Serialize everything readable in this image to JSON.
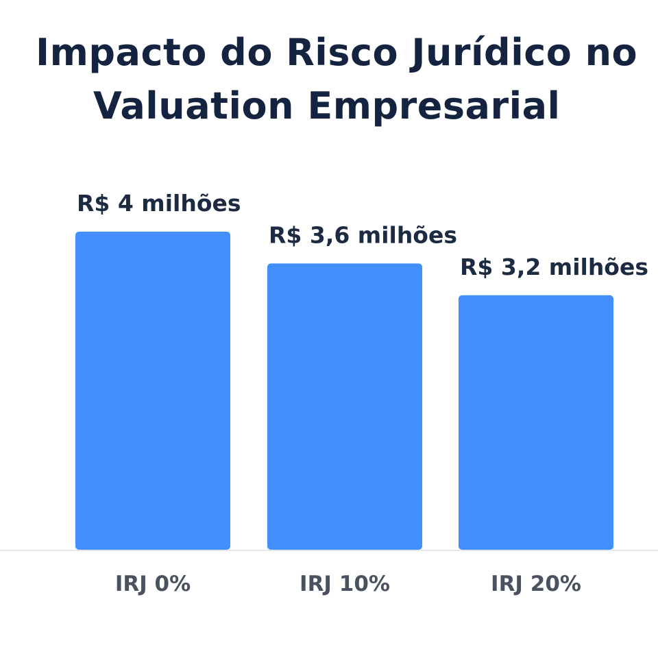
{
  "title_line1": "Impacto do Risco Jurídico no",
  "title_line2": "Valuation Empresarial",
  "colors": {
    "bar": "#428ffb",
    "title": "#14233f",
    "value_label": "#1c2a42",
    "category_label": "#4a5260",
    "baseline": "#e4e7ec"
  },
  "chart_data": {
    "type": "bar",
    "title": "Impacto do Risco Jurídico no Valuation Empresarial",
    "xlabel": "",
    "ylabel": "",
    "categories": [
      "IRJ 0%",
      "IRJ 10%",
      "IRJ 20%"
    ],
    "values": [
      4,
      3.6,
      3.2
    ],
    "value_labels": [
      "R$ 4 milhões",
      "R$ 3,6 milhões",
      "R$ 3,2 milhões"
    ],
    "ylim": [
      0,
      4.4
    ],
    "grid": false,
    "legend": "none"
  }
}
